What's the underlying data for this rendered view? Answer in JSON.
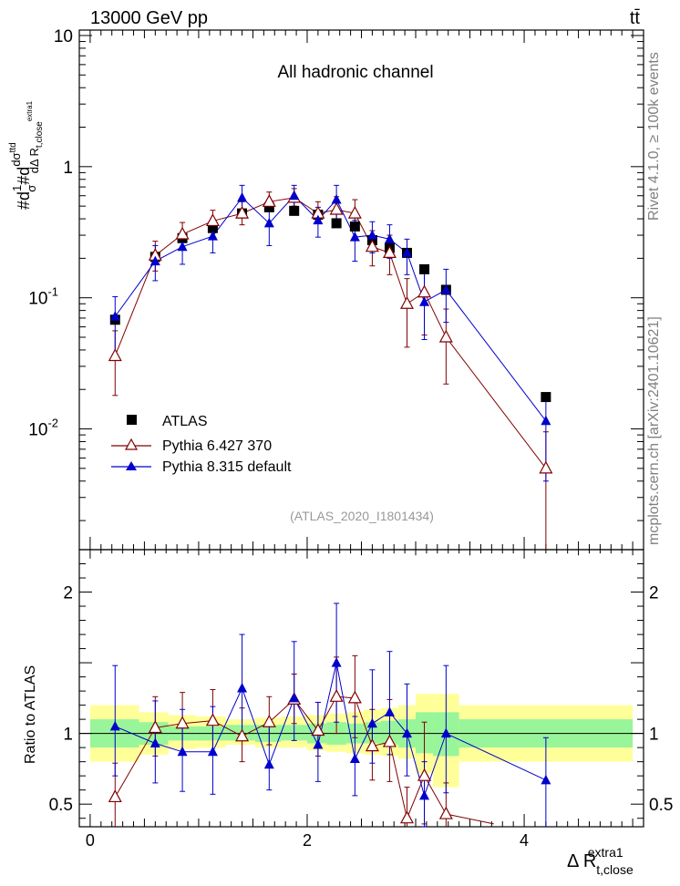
{
  "header": {
    "energy_label": "13000 GeV pp",
    "process_label": "tt̄",
    "channel_label": "All hadronic channel",
    "analysis_id": "(ATLAS_2020_I1801434)",
    "side_label_top": "Rivet 4.1.0, ≥ 100k events",
    "side_label_bottom": "mcplots.cern.ch [arXiv:2401.10621]"
  },
  "chart_data": [
    {
      "type": "scatter",
      "panel": "main",
      "yscale": "log",
      "ylim": [
        0.0012,
        11
      ],
      "xlim": [
        -0.1,
        5.1
      ],
      "ylabel": "#d 1/σ #d dσ^ttd / dΔ R_t,close^extra1",
      "ytick_labels": [
        "10",
        "1",
        "10^-1",
        "10^-2"
      ],
      "legend": {
        "placement": "bottom-left",
        "entries": [
          "ATLAS",
          "Pythia 6.427 370",
          "Pythia 8.315 default"
        ]
      },
      "series": [
        {
          "name": "ATLAS",
          "marker": "square",
          "color": "#000000",
          "x": [
            0.23,
            0.6,
            0.85,
            1.13,
            1.4,
            1.65,
            1.88,
            2.1,
            2.27,
            2.44,
            2.6,
            2.76,
            2.92,
            3.08,
            3.28,
            4.2
          ],
          "y": [
            0.068,
            0.205,
            0.285,
            0.34,
            0.44,
            0.49,
            0.46,
            0.43,
            0.37,
            0.35,
            0.275,
            0.24,
            0.22,
            0.165,
            0.115,
            0.0175
          ],
          "xerr": [
            [
              0.0,
              0.45
            ],
            [
              0.45,
              0.72
            ],
            [
              0.72,
              0.98
            ],
            [
              0.98,
              1.25
            ],
            [
              1.25,
              1.52
            ],
            [
              1.52,
              1.76
            ],
            [
              1.76,
              2.0
            ],
            [
              2.0,
              2.18
            ],
            [
              2.18,
              2.36
            ],
            [
              2.36,
              2.52
            ],
            [
              2.52,
              2.68
            ],
            [
              2.68,
              2.84
            ],
            [
              2.84,
              3.0
            ],
            [
              3.0,
              3.16
            ],
            [
              3.16,
              3.4
            ],
            [
              3.4,
              5.0
            ]
          ]
        },
        {
          "name": "Pythia 6.427 370",
          "marker": "open-triangle",
          "color": "#800000",
          "x": [
            0.23,
            0.6,
            0.85,
            1.13,
            1.4,
            1.65,
            1.88,
            2.1,
            2.27,
            2.44,
            2.6,
            2.76,
            2.92,
            3.08,
            3.28,
            4.2
          ],
          "y": [
            0.036,
            0.21,
            0.305,
            0.385,
            0.44,
            0.54,
            0.58,
            0.44,
            0.47,
            0.44,
            0.245,
            0.22,
            0.09,
            0.11,
            0.05,
            0.005
          ],
          "yerr_lo": [
            0.018,
            0.05,
            0.06,
            0.07,
            0.08,
            0.08,
            0.08,
            0.07,
            0.1,
            0.1,
            0.07,
            0.07,
            0.048,
            0.058,
            0.028,
            0.0044
          ],
          "yerr_hi": [
            0.02,
            0.06,
            0.07,
            0.08,
            0.1,
            0.1,
            0.1,
            0.1,
            0.12,
            0.12,
            0.08,
            0.08,
            0.05,
            0.06,
            0.032,
            0.0045
          ]
        },
        {
          "name": "Pythia 8.315 default",
          "marker": "triangle",
          "color": "#0000cc",
          "x": [
            0.23,
            0.6,
            0.85,
            1.13,
            1.4,
            1.65,
            1.88,
            2.1,
            2.27,
            2.44,
            2.6,
            2.76,
            2.92,
            3.08,
            3.28,
            4.2
          ],
          "y": [
            0.072,
            0.19,
            0.245,
            0.295,
            0.58,
            0.37,
            0.6,
            0.39,
            0.56,
            0.29,
            0.3,
            0.28,
            0.22,
            0.093,
            0.115,
            0.0115
          ],
          "yerr_lo": [
            0.035,
            0.055,
            0.065,
            0.075,
            0.14,
            0.12,
            0.14,
            0.1,
            0.16,
            0.1,
            0.08,
            0.08,
            0.07,
            0.045,
            0.05,
            0.0075
          ],
          "yerr_hi": [
            0.03,
            0.06,
            0.065,
            0.075,
            0.14,
            0.12,
            0.12,
            0.1,
            0.16,
            0.1,
            0.08,
            0.08,
            0.06,
            0.06,
            0.05,
            0.007
          ]
        }
      ]
    },
    {
      "type": "scatter",
      "panel": "ratio",
      "ylabel": "Ratio to ATLAS",
      "xlabel": "Δ R_t,close^extra1",
      "xlim": [
        -0.1,
        5.1
      ],
      "ylim": [
        0.34,
        2.3
      ],
      "xtick_labels": [
        "0",
        "2",
        "4"
      ],
      "ytick_labels": [
        "0.5",
        "1",
        "2"
      ],
      "uncertainty_bands": {
        "bins": [
          [
            0.0,
            0.45
          ],
          [
            0.45,
            0.72
          ],
          [
            0.72,
            0.98
          ],
          [
            0.98,
            1.25
          ],
          [
            1.25,
            1.52
          ],
          [
            1.52,
            1.76
          ],
          [
            1.76,
            2.0
          ],
          [
            2.0,
            2.18
          ],
          [
            2.18,
            2.36
          ],
          [
            2.36,
            2.52
          ],
          [
            2.52,
            2.68
          ],
          [
            2.68,
            2.84
          ],
          [
            2.84,
            3.0
          ],
          [
            3.0,
            3.16
          ],
          [
            3.16,
            3.4
          ],
          [
            3.4,
            5.0
          ]
        ],
        "inner_lo": [
          0.9,
          0.92,
          0.95,
          0.95,
          0.95,
          0.94,
          0.95,
          0.93,
          0.92,
          0.93,
          0.93,
          0.92,
          0.9,
          0.86,
          0.84,
          0.9
        ],
        "inner_hi": [
          1.1,
          1.08,
          1.05,
          1.05,
          1.06,
          1.06,
          1.06,
          1.07,
          1.08,
          1.07,
          1.08,
          1.09,
          1.1,
          1.15,
          1.15,
          1.1
        ],
        "outer_lo": [
          0.8,
          0.85,
          0.89,
          0.9,
          0.92,
          0.9,
          0.9,
          0.88,
          0.87,
          0.86,
          0.85,
          0.84,
          0.82,
          0.72,
          0.62,
          0.8
        ],
        "outer_hi": [
          1.2,
          1.15,
          1.13,
          1.12,
          1.1,
          1.11,
          1.12,
          1.13,
          1.14,
          1.15,
          1.17,
          1.18,
          1.2,
          1.28,
          1.28,
          1.2
        ],
        "inner_color": "#99f599",
        "outer_color": "#ffff99"
      },
      "series": [
        {
          "name": "Pythia 6.427 370",
          "marker": "open-triangle",
          "color": "#800000",
          "x": [
            0.23,
            0.6,
            0.85,
            1.13,
            1.4,
            1.65,
            1.88,
            2.1,
            2.27,
            2.44,
            2.6,
            2.76,
            2.92,
            3.08,
            3.28
          ],
          "y": [
            0.55,
            1.04,
            1.07,
            1.09,
            0.98,
            1.08,
            1.24,
            1.02,
            1.26,
            1.25,
            0.91,
            0.94,
            0.4,
            0.7,
            0.43
          ],
          "yerr_lo": [
            0.22,
            0.2,
            0.22,
            0.22,
            0.18,
            0.16,
            0.17,
            0.18,
            0.26,
            0.28,
            0.24,
            0.28,
            0.2,
            0.34,
            0.2
          ],
          "yerr_hi": [
            0.24,
            0.22,
            0.22,
            0.22,
            0.2,
            0.18,
            0.18,
            0.2,
            0.28,
            0.3,
            0.26,
            0.3,
            0.22,
            0.38,
            0.22
          ],
          "trailing_x": 3.72,
          "trailing_y": 0.36
        },
        {
          "name": "Pythia 8.315 default",
          "marker": "triangle",
          "color": "#0000cc",
          "x": [
            0.23,
            0.6,
            0.85,
            1.13,
            1.4,
            1.65,
            1.88,
            2.1,
            2.27,
            2.44,
            2.6,
            2.76,
            2.92,
            3.08,
            3.28,
            4.2
          ],
          "y": [
            1.05,
            0.93,
            0.87,
            0.87,
            1.32,
            0.78,
            1.25,
            0.92,
            1.5,
            0.82,
            1.07,
            1.15,
            1.0,
            0.56,
            1.0,
            0.67
          ],
          "yerr_lo": [
            0.35,
            0.28,
            0.28,
            0.3,
            0.35,
            0.18,
            0.3,
            0.26,
            0.42,
            0.26,
            0.28,
            0.3,
            0.3,
            0.22,
            0.42,
            0.35
          ],
          "yerr_hi": [
            0.43,
            0.3,
            0.3,
            0.32,
            0.38,
            0.3,
            0.4,
            0.3,
            0.42,
            0.3,
            0.38,
            0.43,
            0.35,
            0.24,
            0.48,
            0.3
          ]
        }
      ]
    }
  ]
}
